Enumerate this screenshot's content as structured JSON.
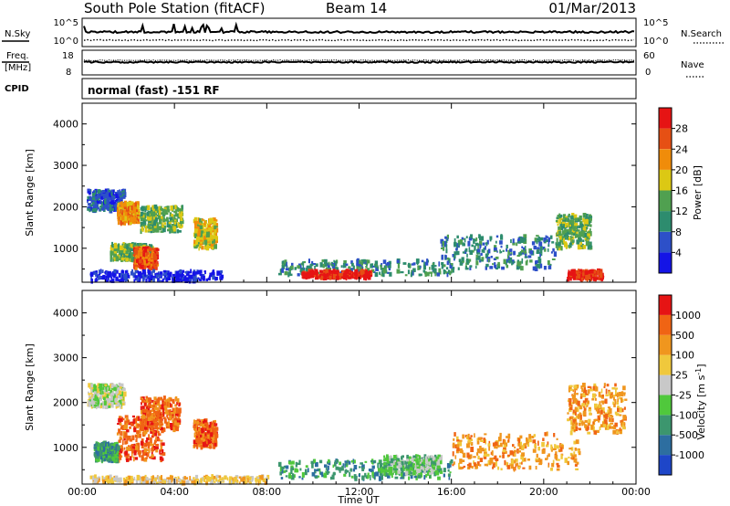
{
  "header": {
    "station": "South Pole Station (fitACF)",
    "beam": "Beam 14",
    "date": "01/Mar/2013"
  },
  "params": {
    "nsky_label": "N.Sky",
    "nsearch_label": "N.Search",
    "nsky_ticks": [
      "10^5",
      "10^0"
    ],
    "nsearch_ticks": [
      "10^5",
      "10^0"
    ],
    "freq_label": [
      "Freq.",
      "[MHz]"
    ],
    "freq_ticks": [
      "18",
      "8"
    ],
    "nave_label": "Nave",
    "nave_ticks": [
      "60",
      "0"
    ],
    "cpid_label": "CPID",
    "cpid_text": "normal (fast) -151 RF"
  },
  "chart_data": [
    {
      "type": "heatmap",
      "name": "power",
      "ylabel": "Slant Range [km]",
      "yticks": [
        1000,
        2000,
        3000,
        4000
      ],
      "ylim": [
        180,
        4500
      ],
      "xlim": [
        0,
        24
      ],
      "colorbar": {
        "label": "Power [dB]",
        "ticks": [
          "4",
          "8",
          "12",
          "16",
          "20",
          "24",
          "28"
        ],
        "colors": [
          "#1414e6",
          "#2d50c8",
          "#2d8c6e",
          "#50a050",
          "#dcc814",
          "#f08c0a",
          "#e65014",
          "#e61414"
        ]
      },
      "regions": [
        {
          "t": [
            0.2,
            1.8
          ],
          "r": [
            1900,
            2400
          ],
          "level": 1
        },
        {
          "t": [
            1.2,
            3.0
          ],
          "r": [
            700,
            1100
          ],
          "level": 3
        },
        {
          "t": [
            2.2,
            3.2
          ],
          "r": [
            500,
            1000
          ],
          "level": 6
        },
        {
          "t": [
            1.5,
            2.4
          ],
          "r": [
            1600,
            2100
          ],
          "level": 5
        },
        {
          "t": [
            2.5,
            4.3
          ],
          "r": [
            1400,
            2000
          ],
          "level": 3
        },
        {
          "t": [
            4.8,
            5.8
          ],
          "r": [
            1000,
            1700
          ],
          "level": 4
        },
        {
          "t": [
            8.5,
            16.0
          ],
          "r": [
            350,
            700
          ],
          "level": 2
        },
        {
          "t": [
            9.5,
            12.5
          ],
          "r": [
            280,
            450
          ],
          "level": 7
        },
        {
          "t": [
            15.5,
            20.5
          ],
          "r": [
            500,
            1300
          ],
          "level": 2
        },
        {
          "t": [
            20.5,
            22.0
          ],
          "r": [
            1000,
            1800
          ],
          "level": 3
        },
        {
          "t": [
            21.0,
            22.5
          ],
          "r": [
            250,
            450
          ],
          "level": 7
        },
        {
          "t": [
            0.3,
            6.0
          ],
          "r": [
            200,
            450
          ],
          "level": 0
        }
      ]
    },
    {
      "type": "heatmap",
      "name": "velocity",
      "ylabel": "Slant Range [km]",
      "xlabel": "Time UT",
      "xticks": [
        "00:00",
        "04:00",
        "08:00",
        "12:00",
        "16:00",
        "20:00",
        "00:00"
      ],
      "yticks": [
        1000,
        2000,
        3000,
        4000
      ],
      "ylim": [
        180,
        4500
      ],
      "xlim": [
        0,
        24
      ],
      "colorbar": {
        "label": "Velocity [m s^-1]",
        "ticks": [
          "1000",
          "500",
          "100",
          "25",
          "-25",
          "-100",
          "-500",
          "-1000"
        ],
        "colors": [
          "#1e46c8",
          "#2d6ea0",
          "#3c966e",
          "#50c83c",
          "#c8c8c8",
          "#f0c83c",
          "#f0961e",
          "#f06414",
          "#e61414"
        ]
      },
      "regions": [
        {
          "t": [
            0.2,
            1.8
          ],
          "r": [
            1900,
            2400
          ],
          "level": 4
        },
        {
          "t": [
            1.5,
            3.5
          ],
          "r": [
            700,
            1700
          ],
          "level": 7
        },
        {
          "t": [
            2.5,
            4.2
          ],
          "r": [
            1400,
            2100
          ],
          "level": 7
        },
        {
          "t": [
            4.8,
            5.8
          ],
          "r": [
            1000,
            1600
          ],
          "level": 7
        },
        {
          "t": [
            0.5,
            1.5
          ],
          "r": [
            700,
            1100
          ],
          "level": 2
        },
        {
          "t": [
            8.5,
            16.0
          ],
          "r": [
            300,
            700
          ],
          "level": 2
        },
        {
          "t": [
            13.0,
            15.5
          ],
          "r": [
            400,
            800
          ],
          "level": 3
        },
        {
          "t": [
            16.0,
            21.5
          ],
          "r": [
            500,
            1300
          ],
          "level": 6
        },
        {
          "t": [
            21.0,
            23.5
          ],
          "r": [
            1300,
            2400
          ],
          "level": 6
        },
        {
          "t": [
            0.3,
            8.0
          ],
          "r": [
            200,
            350
          ],
          "level": 5
        }
      ]
    }
  ]
}
